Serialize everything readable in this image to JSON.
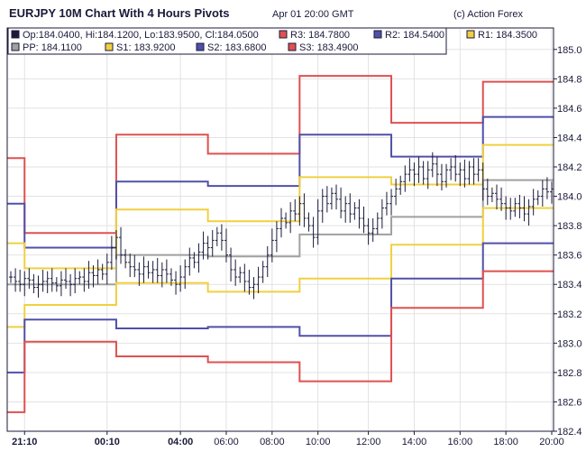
{
  "header": {
    "title": "EURJPY 10M Chart With 4 Hours Pivots",
    "timestamp": "Apr 01 20:00 GMT",
    "credit": "(c) Action Forex"
  },
  "legend": [
    {
      "label": "Op:184.0400, Hi:184.1200, Lo:183.9500, Cl:184.0500",
      "color": "#1a1a3a"
    },
    {
      "label": "R3: 184.7800",
      "color": "#e05050"
    },
    {
      "label": "R2: 184.5400",
      "color": "#5050a8"
    },
    {
      "label": "R1: 184.3500",
      "color": "#f0d040"
    },
    {
      "label": "PP: 184.1100",
      "color": "#a0a0a0"
    },
    {
      "label": "S1: 183.9200",
      "color": "#f0d040"
    },
    {
      "label": "S2: 183.6800",
      "color": "#5050a8"
    },
    {
      "label": "S3: 183.4900",
      "color": "#e05050"
    }
  ],
  "chart_data": {
    "type": "line",
    "title": "EURJPY 10M Chart With 4 Hours Pivots",
    "ylim": [
      182.4,
      185.14
    ],
    "y_ticks": [
      "182.4",
      "182.6",
      "182.8",
      "183.0",
      "183.2",
      "183.4",
      "183.6",
      "183.8",
      "184.0",
      "184.2",
      "184.4",
      "184.6",
      "184.8",
      "185.0"
    ],
    "x_bar_count": 119,
    "x_ticks": [
      {
        "bar": 3,
        "label": "21:10",
        "bold": true
      },
      {
        "bar": 21,
        "label": "00:10",
        "bold": true
      },
      {
        "bar": 37,
        "label": "04:00",
        "bold": true
      },
      {
        "bar": 47,
        "label": "06:00"
      },
      {
        "bar": 57,
        "label": "08:00"
      },
      {
        "bar": 67,
        "label": "10:00"
      },
      {
        "bar": 78,
        "label": "12:00"
      },
      {
        "bar": 88,
        "label": "14:00"
      },
      {
        "bar": 98,
        "label": "16:00"
      },
      {
        "bar": 108,
        "label": "18:00"
      },
      {
        "bar": 118,
        "label": "20:00"
      }
    ],
    "pivot_boundaries": [
      0,
      3,
      23,
      43,
      63,
      83,
      103,
      118
    ],
    "pivots": [
      {
        "name": "R3",
        "color": "#e05050",
        "values": [
          184.26,
          183.75,
          184.42,
          184.29,
          184.82,
          184.5,
          184.78
        ]
      },
      {
        "name": "R2",
        "color": "#5050a8",
        "values": [
          183.95,
          183.65,
          184.1,
          184.07,
          184.42,
          184.27,
          184.54
        ]
      },
      {
        "name": "R1",
        "color": "#f0d040",
        "values": [
          183.68,
          183.51,
          183.91,
          183.83,
          184.13,
          184.08,
          184.35
        ]
      },
      {
        "name": "PP",
        "color": "#a0a0a0",
        "values": [
          183.4,
          183.4,
          183.6,
          183.59,
          183.74,
          183.86,
          184.11
        ]
      },
      {
        "name": "S1",
        "color": "#f0d040",
        "values": [
          183.11,
          183.26,
          183.41,
          183.35,
          183.44,
          183.67,
          183.92
        ]
      },
      {
        "name": "S2",
        "color": "#5050a8",
        "values": [
          182.8,
          183.16,
          183.1,
          183.11,
          183.05,
          183.44,
          183.68
        ]
      },
      {
        "name": "S3",
        "color": "#e05050",
        "values": [
          182.53,
          183.01,
          182.91,
          182.87,
          182.74,
          183.24,
          183.49
        ]
      }
    ],
    "closes": [
      183.45,
      183.42,
      183.4,
      183.44,
      183.43,
      183.38,
      183.4,
      183.42,
      183.44,
      183.41,
      183.39,
      183.43,
      183.42,
      183.4,
      183.44,
      183.45,
      183.42,
      183.48,
      183.46,
      183.5,
      183.47,
      183.55,
      183.65,
      183.72,
      183.6,
      183.55,
      183.52,
      183.5,
      183.47,
      183.52,
      183.48,
      183.5,
      183.46,
      183.5,
      183.47,
      183.43,
      183.4,
      183.45,
      183.52,
      183.58,
      183.55,
      183.62,
      183.68,
      183.65,
      183.7,
      183.75,
      183.7,
      183.6,
      183.5,
      183.45,
      183.48,
      183.42,
      183.38,
      183.4,
      183.45,
      183.52,
      183.6,
      183.7,
      183.78,
      183.85,
      183.82,
      183.9,
      183.88,
      183.95,
      183.85,
      183.8,
      183.72,
      183.9,
      184.0,
      183.95,
      184.02,
      183.98,
      183.9,
      183.95,
      183.88,
      183.92,
      183.85,
      183.8,
      183.75,
      183.78,
      183.85,
      183.92,
      183.95,
      184.0,
      184.05,
      184.1,
      184.15,
      184.18,
      184.15,
      184.2,
      184.12,
      184.18,
      184.22,
      184.15,
      184.1,
      184.18,
      184.2,
      184.15,
      184.18,
      184.12,
      184.2,
      184.15,
      184.18,
      184.05,
      184.0,
      184.02,
      183.98,
      183.95,
      183.92,
      183.9,
      183.95,
      183.92,
      183.88,
      183.93,
      183.98,
      184.0,
      184.05,
      184.03,
      184.05
    ],
    "bar_color": "#1a1a3a"
  }
}
